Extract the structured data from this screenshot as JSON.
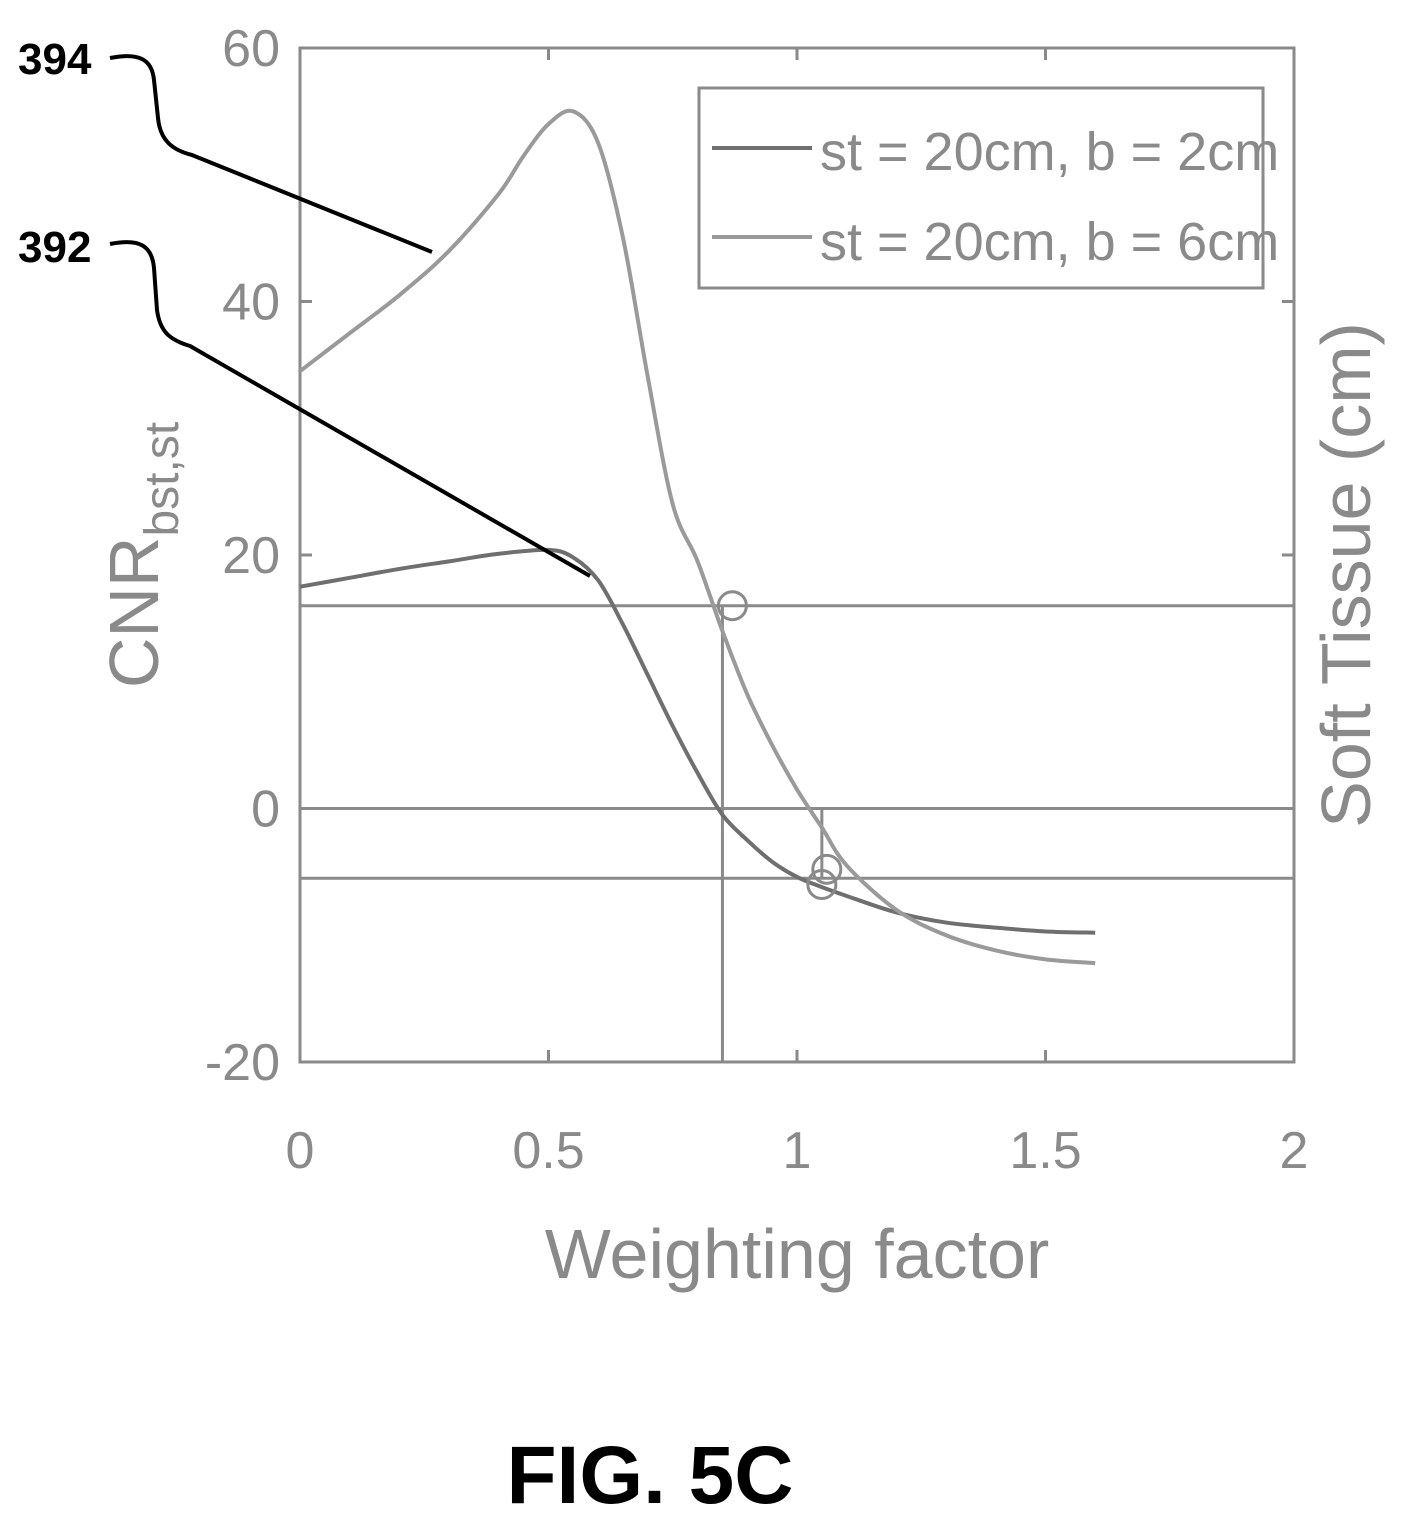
{
  "chart_data": {
    "type": "line",
    "xlabel": "Weighting factor",
    "ylabel_main": "CNR",
    "ylabel_sub": "bst,st",
    "y2label": "Soft Tissue (cm)",
    "xlim": [
      0,
      2
    ],
    "ylim": [
      -20,
      60
    ],
    "x_ticks": [
      "0",
      "0.5",
      "1",
      "1.5",
      "2"
    ],
    "y_ticks": [
      "-20",
      "0",
      "20",
      "40",
      "60"
    ],
    "grid": false,
    "legend_position": "top-right",
    "series": [
      {
        "name": "st = 20cm, b = 2cm",
        "color": "#6f6f6f",
        "x": [
          0,
          0.1,
          0.2,
          0.3,
          0.4,
          0.5,
          0.55,
          0.6,
          0.65,
          0.7,
          0.75,
          0.8,
          0.85,
          0.9,
          0.95,
          1.0,
          1.05,
          1.1,
          1.2,
          1.3,
          1.4,
          1.5,
          1.6
        ],
        "y": [
          17.5,
          18.2,
          18.9,
          19.5,
          20.1,
          20.4,
          19.8,
          18.0,
          14.5,
          10.5,
          6.5,
          2.8,
          -0.5,
          -2.5,
          -4.2,
          -5.4,
          -6.2,
          -6.9,
          -8.2,
          -9.0,
          -9.4,
          -9.7,
          -9.8
        ]
      },
      {
        "name": "st = 20cm, b = 6cm",
        "color": "#9a9a9a",
        "x": [
          0,
          0.1,
          0.2,
          0.3,
          0.4,
          0.45,
          0.5,
          0.55,
          0.6,
          0.65,
          0.7,
          0.75,
          0.8,
          0.85,
          0.9,
          0.95,
          1.0,
          1.05,
          1.1,
          1.2,
          1.3,
          1.4,
          1.5,
          1.6
        ],
        "y": [
          34.5,
          37.5,
          40.5,
          44.0,
          48.5,
          51.5,
          54.0,
          55.0,
          52.5,
          45.0,
          34.0,
          24.0,
          19.5,
          14.0,
          9.0,
          5.0,
          1.5,
          -1.5,
          -4.5,
          -8.0,
          -10.0,
          -11.2,
          -11.9,
          -12.2
        ]
      }
    ],
    "reference_lines": [
      {
        "axis": "y",
        "value": 0
      },
      {
        "axis": "y",
        "value": 16
      },
      {
        "axis": "y",
        "value": -5.5
      },
      {
        "axis": "x",
        "value": 0.85,
        "from": -20,
        "to": 16
      },
      {
        "axis": "x",
        "value": 1.05,
        "from": -5.5,
        "to": 0
      }
    ],
    "markers": [
      {
        "x": 0.87,
        "y": 16,
        "shape": "circle"
      },
      {
        "x": 1.05,
        "y": -6,
        "shape": "circle"
      },
      {
        "x": 1.06,
        "y": -4.8,
        "shape": "circle"
      }
    ]
  },
  "callouts": [
    {
      "label": "394"
    },
    {
      "label": "392"
    }
  ],
  "caption": "FIG. 5C"
}
